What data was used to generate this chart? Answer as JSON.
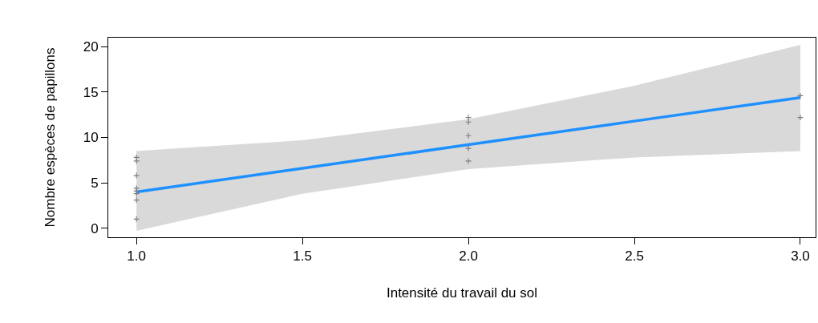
{
  "chart_data": {
    "type": "scatter",
    "xlabel": "Intensité du travail du sol",
    "ylabel": "Nombre espèces de papillons",
    "xlim": [
      0.915,
      3.046
    ],
    "ylim": [
      -1.0,
      21.0
    ],
    "xticks": [
      {
        "value": 1,
        "label": "1.0"
      },
      {
        "value": 1.5,
        "label": "1.5"
      },
      {
        "value": 2,
        "label": "2.0"
      },
      {
        "value": 2.5,
        "label": "2.5"
      },
      {
        "value": 3,
        "label": "3.0"
      }
    ],
    "yticks": [
      0,
      5,
      10,
      15,
      20
    ],
    "series": [
      {
        "type": "line",
        "color": "#1e90ff",
        "x": [
          1,
          1.5,
          2,
          2.5,
          3
        ],
        "values": [
          4.0,
          6.6,
          9.2,
          11.8,
          14.4
        ],
        "lower": [
          -0.3,
          3.8,
          6.5,
          7.8,
          8.5
        ],
        "upper": [
          8.5,
          9.7,
          12.0,
          15.7,
          20.2
        ]
      },
      {
        "marker": "cross",
        "color": "#7f7f7f",
        "x": [
          1,
          1,
          1,
          1,
          1,
          1,
          1,
          1,
          2,
          2,
          2,
          2,
          2,
          3,
          3
        ],
        "values": [
          7.8,
          7.4,
          5.8,
          4.4,
          4.1,
          3.8,
          3.1,
          1.0,
          12.2,
          11.7,
          10.2,
          8.8,
          7.4,
          14.6,
          12.2
        ]
      }
    ]
  }
}
